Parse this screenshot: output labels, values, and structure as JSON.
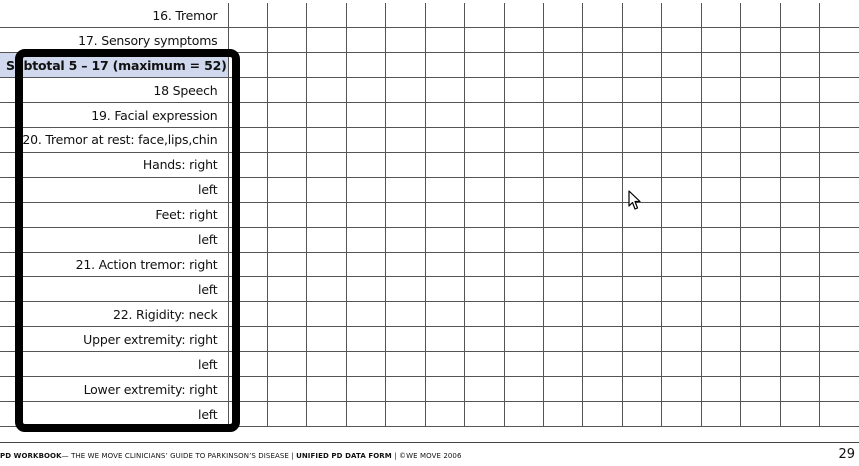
{
  "form": {
    "rows": [
      {
        "label": "16. Tremor",
        "type": "item"
      },
      {
        "label": "17. Sensory symptoms",
        "type": "item"
      },
      {
        "label": "Subtotal 5 – 17 (maximum = 52)",
        "type": "subtotal"
      },
      {
        "label": "18 Speech",
        "type": "item"
      },
      {
        "label": "19. Facial expression",
        "type": "item"
      },
      {
        "label": "20. Tremor at rest: face,lips,chin",
        "type": "item"
      },
      {
        "label": "Hands: right",
        "type": "item"
      },
      {
        "label": "left",
        "type": "item"
      },
      {
        "label": "Feet: right",
        "type": "item"
      },
      {
        "label": "left",
        "type": "item"
      },
      {
        "label": "21. Action tremor: right",
        "type": "item"
      },
      {
        "label": "left",
        "type": "item"
      },
      {
        "label": "22. Rigidity: neck",
        "type": "item"
      },
      {
        "label": "Upper extremity: right",
        "type": "item"
      },
      {
        "label": "left",
        "type": "item"
      },
      {
        "label": "Lower extremity: right",
        "type": "item"
      },
      {
        "label": "left",
        "type": "item"
      }
    ],
    "grid_columns": 16
  },
  "footer": {
    "part1": "PD WORKBOOK",
    "part2": "— THE WE MOVE CLINICIANS’ GUIDE TO PARKINSON’S DISEASE | ",
    "part3": "UNIFIED PD DATA FORM",
    "part4": " | ©WE MOVE 2006"
  },
  "page_number": "29",
  "colors": {
    "subtotal_highlight": "#d0d8ee",
    "frame": "#000000",
    "grid_lines": "#555555"
  }
}
